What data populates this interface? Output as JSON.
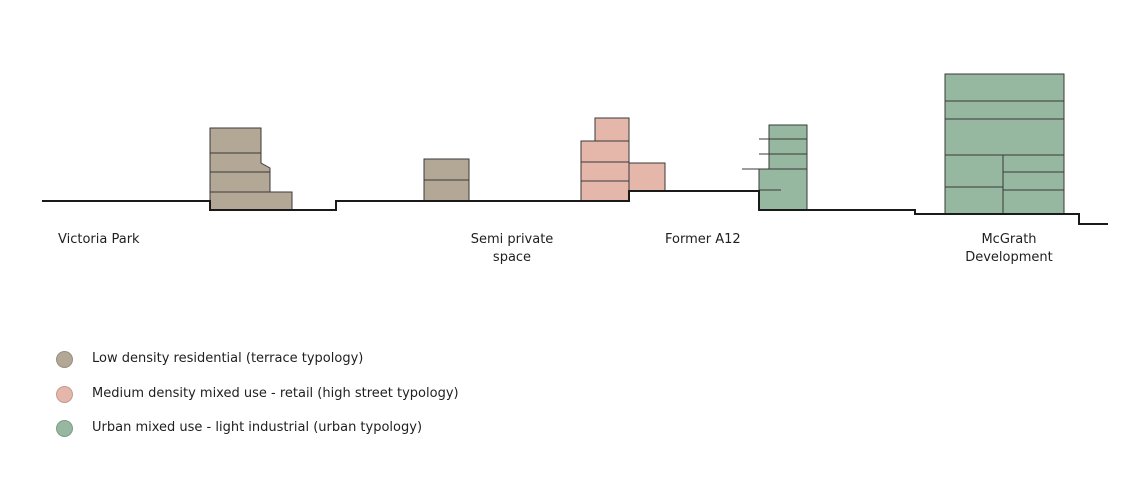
{
  "colors": {
    "low": "#b3a796",
    "medium": "#e5b6aa",
    "urban": "#96b7a0",
    "ground": "#1a1a1a"
  },
  "labels": {
    "victoria_park": "Victoria Park",
    "semi_private_line1": "Semi private",
    "semi_private_line2": "space",
    "former_a12": "Former A12",
    "mcgrath_line1": "McGrath",
    "mcgrath_line2": "Development"
  },
  "legend": {
    "low": "Low density residential (terrace typology)",
    "medium": "Medium density mixed use - retail (high street typology)",
    "urban": "Urban mixed use - light industrial (urban typology)"
  }
}
